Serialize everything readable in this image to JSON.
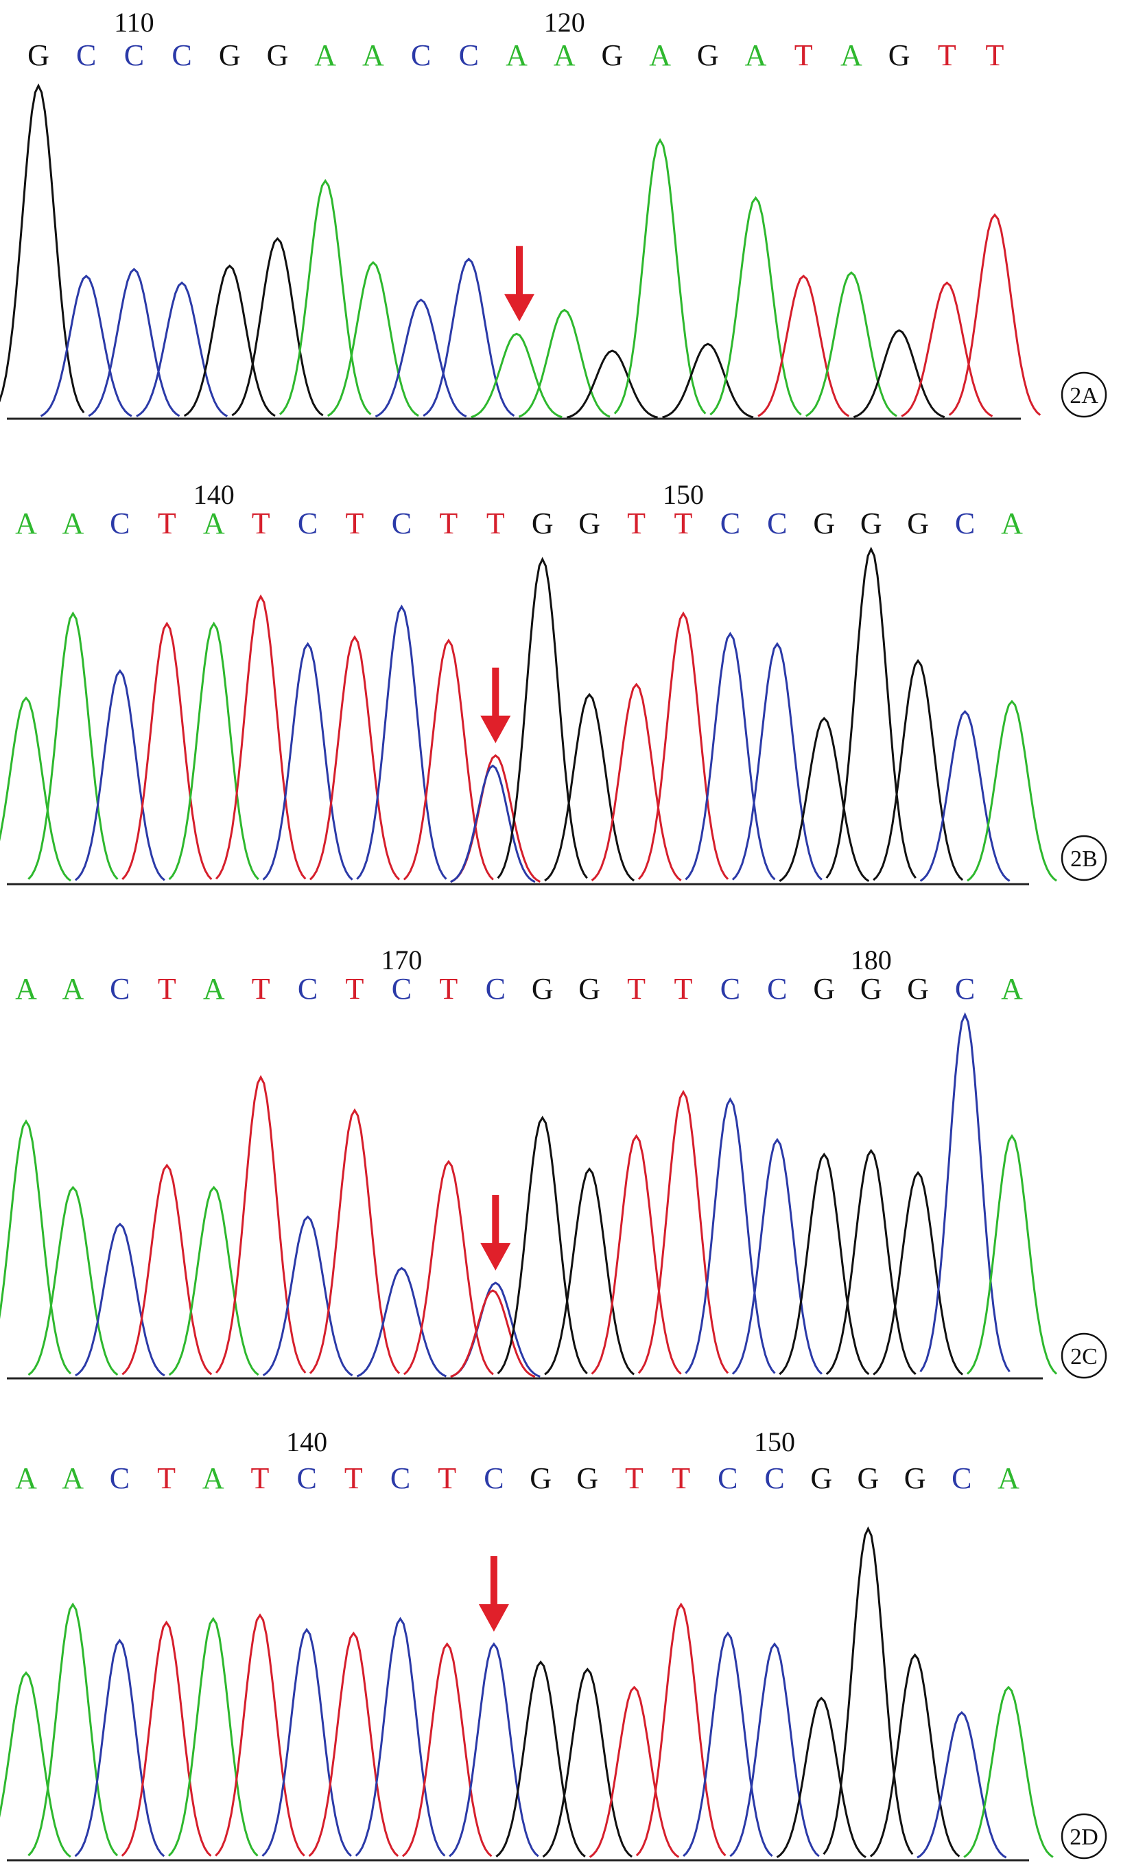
{
  "colors": {
    "A": "#2eb82e",
    "C": "#2b3aa8",
    "G": "#111111",
    "T": "#d61f2c",
    "arrow": "#e0202a"
  },
  "panels": [
    {
      "label": "2A",
      "positions": [
        {
          "number": "110",
          "base_index": 2
        },
        {
          "number": "120",
          "base_index": 11
        }
      ],
      "bases": [
        "G",
        "C",
        "C",
        "C",
        "G",
        "G",
        "A",
        "A",
        "C",
        "C",
        "A",
        "A",
        "G",
        "A",
        "G",
        "A",
        "T",
        "A",
        "G",
        "T",
        "T"
      ],
      "peaks": [
        {
          "b": "G",
          "h": 0.98
        },
        {
          "b": "C",
          "h": 0.42
        },
        {
          "b": "C",
          "h": 0.44
        },
        {
          "b": "C",
          "h": 0.4
        },
        {
          "b": "G",
          "h": 0.45
        },
        {
          "b": "G",
          "h": 0.53
        },
        {
          "b": "A",
          "h": 0.7
        },
        {
          "b": "A",
          "h": 0.46
        },
        {
          "b": "C",
          "h": 0.35
        },
        {
          "b": "C",
          "h": 0.47
        },
        {
          "b": "A",
          "h": 0.25
        },
        {
          "b": "A",
          "h": 0.32
        },
        {
          "b": "G",
          "h": 0.2
        },
        {
          "b": "A",
          "h": 0.82
        },
        {
          "b": "G",
          "h": 0.22
        },
        {
          "b": "A",
          "h": 0.65
        },
        {
          "b": "T",
          "h": 0.42
        },
        {
          "b": "A",
          "h": 0.43
        },
        {
          "b": "G",
          "h": 0.26
        },
        {
          "b": "T",
          "h": 0.4
        },
        {
          "b": "T",
          "h": 0.6
        }
      ],
      "arrow_index": 10
    },
    {
      "label": "2B",
      "positions": [
        {
          "number": "140",
          "base_index": 4
        },
        {
          "number": "150",
          "base_index": 14
        }
      ],
      "bases": [
        "A",
        "A",
        "C",
        "T",
        "A",
        "T",
        "C",
        "T",
        "C",
        "T",
        "T",
        "G",
        "G",
        "T",
        "T",
        "C",
        "C",
        "G",
        "G",
        "G",
        "C",
        "A"
      ],
      "peaks": [
        {
          "b": "A",
          "h": 0.55
        },
        {
          "b": "A",
          "h": 0.8
        },
        {
          "b": "C",
          "h": 0.63
        },
        {
          "b": "T",
          "h": 0.77
        },
        {
          "b": "A",
          "h": 0.77
        },
        {
          "b": "T",
          "h": 0.85
        },
        {
          "b": "C",
          "h": 0.71
        },
        {
          "b": "T",
          "h": 0.73
        },
        {
          "b": "C",
          "h": 0.82
        },
        {
          "b": "T",
          "h": 0.72
        },
        {
          "b": "T",
          "h": 0.38,
          "overlap": "C"
        },
        {
          "b": "G",
          "h": 0.96
        },
        {
          "b": "G",
          "h": 0.56
        },
        {
          "b": "T",
          "h": 0.59
        },
        {
          "b": "T",
          "h": 0.8
        },
        {
          "b": "C",
          "h": 0.74
        },
        {
          "b": "C",
          "h": 0.71
        },
        {
          "b": "G",
          "h": 0.49
        },
        {
          "b": "G",
          "h": 0.99
        },
        {
          "b": "G",
          "h": 0.66
        },
        {
          "b": "C",
          "h": 0.51
        },
        {
          "b": "A",
          "h": 0.54
        }
      ],
      "arrow_index": 10
    },
    {
      "label": "2C",
      "positions": [
        {
          "number": "170",
          "base_index": 8
        },
        {
          "number": "180",
          "base_index": 18
        }
      ],
      "bases": [
        "A",
        "A",
        "C",
        "T",
        "A",
        "T",
        "C",
        "T",
        "C",
        "T",
        "C",
        "G",
        "G",
        "T",
        "T",
        "C",
        "C",
        "G",
        "G",
        "G",
        "C",
        "A"
      ],
      "peaks": [
        {
          "b": "A",
          "h": 0.7
        },
        {
          "b": "A",
          "h": 0.52
        },
        {
          "b": "C",
          "h": 0.42
        },
        {
          "b": "T",
          "h": 0.58
        },
        {
          "b": "A",
          "h": 0.52
        },
        {
          "b": "T",
          "h": 0.82
        },
        {
          "b": "C",
          "h": 0.44
        },
        {
          "b": "T",
          "h": 0.73
        },
        {
          "b": "C",
          "h": 0.3
        },
        {
          "b": "T",
          "h": 0.59
        },
        {
          "b": "C",
          "h": 0.26,
          "overlap": "T"
        },
        {
          "b": "G",
          "h": 0.71
        },
        {
          "b": "G",
          "h": 0.57
        },
        {
          "b": "T",
          "h": 0.66
        },
        {
          "b": "T",
          "h": 0.78
        },
        {
          "b": "C",
          "h": 0.76
        },
        {
          "b": "C",
          "h": 0.65
        },
        {
          "b": "G",
          "h": 0.61
        },
        {
          "b": "G",
          "h": 0.62
        },
        {
          "b": "G",
          "h": 0.56
        },
        {
          "b": "C",
          "h": 0.99
        },
        {
          "b": "A",
          "h": 0.66
        }
      ],
      "arrow_index": 10
    },
    {
      "label": "2D",
      "positions": [
        {
          "number": "140",
          "base_index": 6
        },
        {
          "number": "150",
          "base_index": 16
        }
      ],
      "bases": [
        "A",
        "A",
        "C",
        "T",
        "A",
        "T",
        "C",
        "T",
        "C",
        "T",
        "C",
        "G",
        "G",
        "T",
        "T",
        "C",
        "C",
        "G",
        "G",
        "G",
        "C",
        "A"
      ],
      "peaks": [
        {
          "b": "A",
          "h": 0.52
        },
        {
          "b": "A",
          "h": 0.71
        },
        {
          "b": "C",
          "h": 0.61
        },
        {
          "b": "T",
          "h": 0.66
        },
        {
          "b": "A",
          "h": 0.67
        },
        {
          "b": "T",
          "h": 0.68
        },
        {
          "b": "C",
          "h": 0.64
        },
        {
          "b": "T",
          "h": 0.63
        },
        {
          "b": "C",
          "h": 0.67
        },
        {
          "b": "T",
          "h": 0.6
        },
        {
          "b": "C",
          "h": 0.6
        },
        {
          "b": "G",
          "h": 0.55
        },
        {
          "b": "G",
          "h": 0.53
        },
        {
          "b": "T",
          "h": 0.48
        },
        {
          "b": "T",
          "h": 0.71
        },
        {
          "b": "C",
          "h": 0.63
        },
        {
          "b": "C",
          "h": 0.6
        },
        {
          "b": "G",
          "h": 0.45
        },
        {
          "b": "G",
          "h": 0.92
        },
        {
          "b": "G",
          "h": 0.57
        },
        {
          "b": "C",
          "h": 0.41
        },
        {
          "b": "A",
          "h": 0.48
        }
      ],
      "arrow_index": 10
    }
  ]
}
